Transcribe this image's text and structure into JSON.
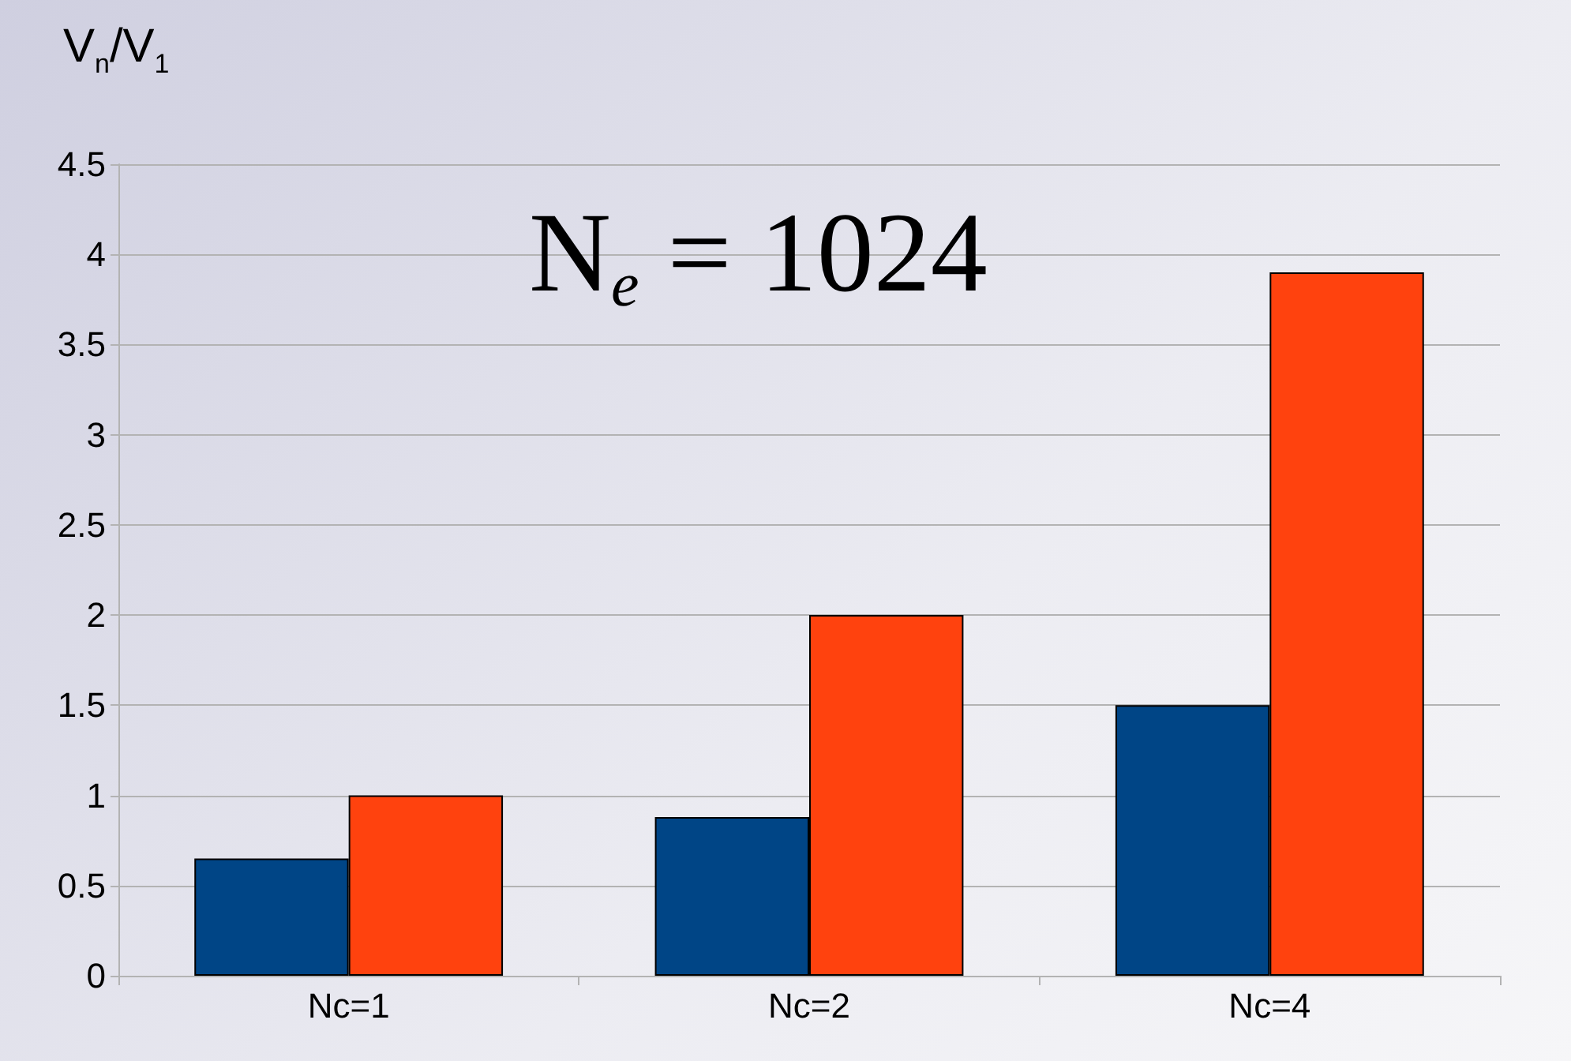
{
  "chart_data": {
    "type": "bar",
    "title": "N$_{e}$ = 1024",
    "ylabel": "V$_{n}$/V$_{1}$",
    "categories": [
      "Nc=1",
      "Nc=2",
      "Nc=4"
    ],
    "series": [
      {
        "color": "#004586",
        "values": [
          0.65,
          0.88,
          1.5
        ]
      },
      {
        "color": "#ff420e",
        "values": [
          1.0,
          2.0,
          3.9
        ]
      }
    ],
    "ylim": [
      0,
      4.5
    ],
    "yticks": [
      0,
      0.5,
      1,
      1.5,
      2,
      2.5,
      3,
      3.5,
      4,
      4.5
    ],
    "grid": "y"
  }
}
